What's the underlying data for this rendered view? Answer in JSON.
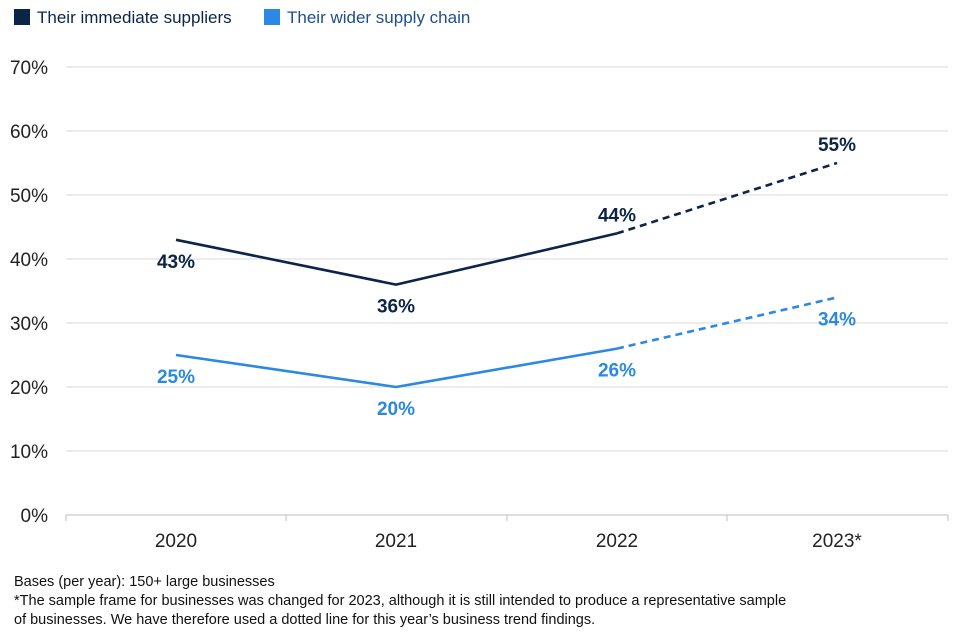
{
  "chart_data": {
    "type": "line",
    "categories": [
      "2020",
      "2021",
      "2022",
      "2023*"
    ],
    "series": [
      {
        "name": "Their immediate suppliers",
        "color": "#0b2447",
        "values": [
          43,
          36,
          44,
          55
        ],
        "labels": [
          "43%",
          "36%",
          "44%",
          "55%"
        ],
        "label_side": [
          "below",
          "below",
          "above",
          "above"
        ]
      },
      {
        "name": "Their wider supply chain",
        "color": "#2b88e3",
        "values": [
          25,
          20,
          26,
          34
        ],
        "labels": [
          "25%",
          "20%",
          "26%",
          "34%"
        ],
        "label_side": [
          "below",
          "below",
          "below",
          "below"
        ]
      }
    ],
    "dashed_from_index": 2,
    "ylim": [
      0,
      70
    ],
    "y_ticks": [
      0,
      10,
      20,
      30,
      40,
      50,
      60,
      70
    ],
    "y_tick_labels": [
      "0%",
      "10%",
      "20%",
      "30%",
      "40%",
      "50%",
      "60%",
      "70%"
    ],
    "grid": true,
    "legend_position": "top-left",
    "xlabel": "",
    "ylabel": "",
    "title": ""
  },
  "footnote": {
    "line1": "Bases (per year): 150+ large businesses",
    "line2": "*The sample frame for businesses was changed for 2023, although it is still intended to produce a representative sample",
    "line3": "of businesses. We have therefore used a dotted line for this year’s business trend findings."
  },
  "colors": {
    "grid": "#d9d9d9",
    "axis": "#bfbfbf"
  }
}
